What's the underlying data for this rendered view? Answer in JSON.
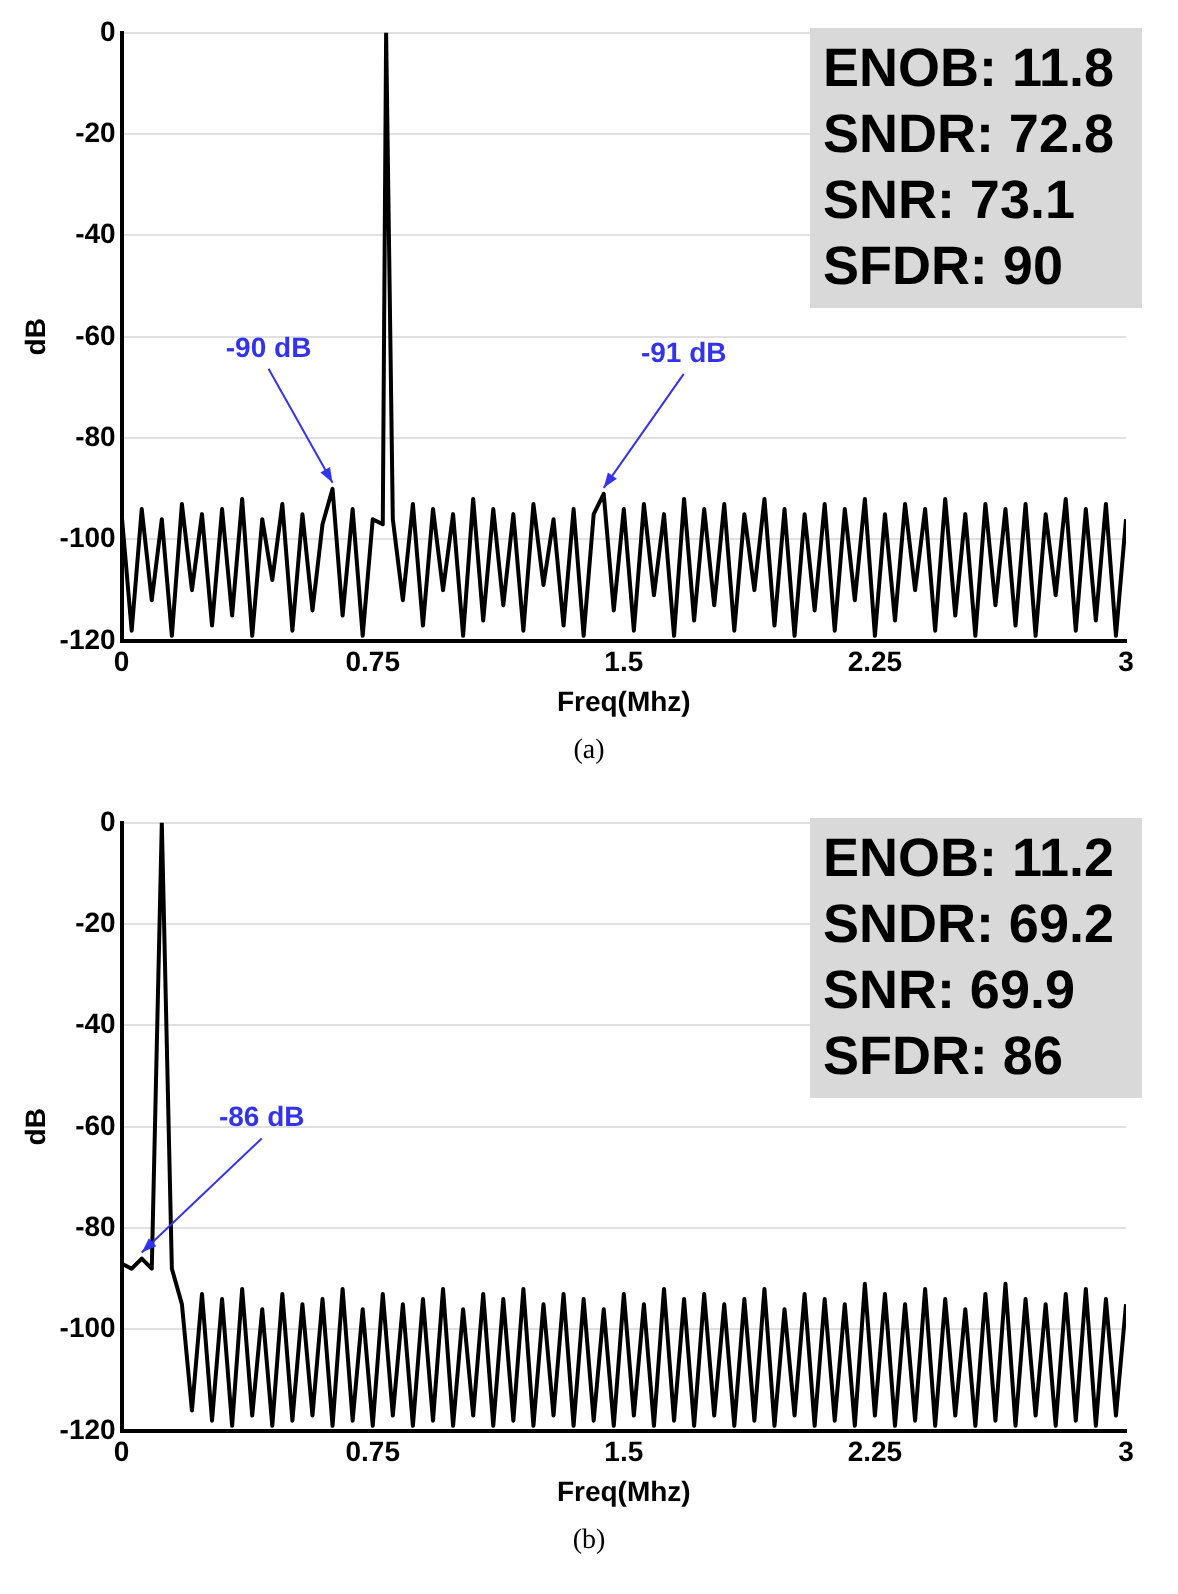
{
  "chart_data": [
    {
      "type": "line",
      "title": "(a)",
      "xlabel": "Freq(Mhz)",
      "ylabel": "dB",
      "xlim": [
        0,
        3
      ],
      "xticks": [
        0,
        0.75,
        1.5,
        2.25,
        3
      ],
      "ylim": [
        -120,
        0
      ],
      "yticks": [
        0,
        -20,
        -40,
        -60,
        -80,
        -100,
        -120
      ],
      "grid": "y",
      "legend": false,
      "marker": "none",
      "line_style": "solid",
      "annotations": [
        {
          "text": "-90 dB",
          "x": 0.63,
          "y": -90
        },
        {
          "text": "-91 dB",
          "x": 1.44,
          "y": -91
        },
        "ENOB: 11.8",
        "SNDR: 72.8",
        "SNR: 73.1",
        "SFDR: 90"
      ],
      "series": [
        {
          "color": "#000000",
          "x": [
            0,
            0.03,
            0.06,
            0.09,
            0.12,
            0.15,
            0.18,
            0.21,
            0.24,
            0.27,
            0.3,
            0.33,
            0.36,
            0.39,
            0.42,
            0.45,
            0.48,
            0.51,
            0.54,
            0.57,
            0.6,
            0.63,
            0.66,
            0.69,
            0.72,
            0.75,
            0.78,
            0.79,
            0.81,
            0.84,
            0.87,
            0.9,
            0.93,
            0.96,
            0.99,
            1.02,
            1.05,
            1.08,
            1.11,
            1.14,
            1.17,
            1.2,
            1.23,
            1.26,
            1.29,
            1.32,
            1.35,
            1.38,
            1.41,
            1.44,
            1.47,
            1.5,
            1.53,
            1.56,
            1.59,
            1.62,
            1.65,
            1.68,
            1.71,
            1.74,
            1.77,
            1.8,
            1.83,
            1.86,
            1.89,
            1.92,
            1.95,
            1.98,
            2.01,
            2.04,
            2.07,
            2.1,
            2.13,
            2.16,
            2.19,
            2.22,
            2.25,
            2.28,
            2.31,
            2.34,
            2.37,
            2.4,
            2.43,
            2.46,
            2.49,
            2.52,
            2.55,
            2.58,
            2.61,
            2.64,
            2.67,
            2.7,
            2.73,
            2.76,
            2.79,
            2.82,
            2.85,
            2.88,
            2.91,
            2.94,
            2.97,
            3
          ],
          "values": [
            -95,
            -118,
            -94,
            -112,
            -96,
            -119,
            -93,
            -110,
            -95,
            -117,
            -94,
            -115,
            -92,
            -119,
            -96,
            -108,
            -93,
            -118,
            -95,
            -114,
            -97,
            -90,
            -115,
            -94,
            -119,
            -96,
            -97,
            0,
            -96,
            -112,
            -93,
            -117,
            -94,
            -110,
            -95,
            -119,
            -92,
            -116,
            -94,
            -113,
            -95,
            -118,
            -93,
            -109,
            -96,
            -117,
            -94,
            -119,
            -95,
            -91,
            -114,
            -94,
            -118,
            -93,
            -111,
            -95,
            -119,
            -92,
            -116,
            -94,
            -113,
            -93,
            -118,
            -95,
            -110,
            -92,
            -117,
            -94,
            -119,
            -95,
            -114,
            -93,
            -118,
            -94,
            -112,
            -92,
            -119,
            -95,
            -116,
            -93,
            -110,
            -94,
            -118,
            -92,
            -115,
            -95,
            -119,
            -93,
            -113,
            -94,
            -117,
            -93,
            -119,
            -95,
            -111,
            -92,
            -118,
            -94,
            -116,
            -93,
            -119,
            -96
          ]
        }
      ]
    },
    {
      "type": "line",
      "title": "(b)",
      "xlabel": "Freq(Mhz)",
      "ylabel": "dB",
      "xlim": [
        0,
        3
      ],
      "xticks": [
        0,
        0.75,
        1.5,
        2.25,
        3
      ],
      "ylim": [
        -120,
        0
      ],
      "yticks": [
        0,
        -20,
        -40,
        -60,
        -80,
        -100,
        -120
      ],
      "grid": "y",
      "legend": false,
      "marker": "none",
      "line_style": "solid",
      "annotations": [
        {
          "text": "-86 dB",
          "x": 0.06,
          "y": -86
        },
        "ENOB: 11.2",
        "SNDR: 69.2",
        "SNR: 69.9",
        "SFDR: 86"
      ],
      "series": [
        {
          "color": "#000000",
          "x": [
            0,
            0.03,
            0.06,
            0.09,
            0.12,
            0.15,
            0.18,
            0.21,
            0.24,
            0.27,
            0.3,
            0.33,
            0.36,
            0.39,
            0.42,
            0.45,
            0.48,
            0.51,
            0.54,
            0.57,
            0.6,
            0.63,
            0.66,
            0.69,
            0.72,
            0.75,
            0.78,
            0.81,
            0.84,
            0.87,
            0.9,
            0.93,
            0.96,
            0.99,
            1.02,
            1.05,
            1.08,
            1.11,
            1.14,
            1.17,
            1.2,
            1.23,
            1.26,
            1.29,
            1.32,
            1.35,
            1.38,
            1.41,
            1.44,
            1.47,
            1.5,
            1.53,
            1.56,
            1.59,
            1.62,
            1.65,
            1.68,
            1.71,
            1.74,
            1.77,
            1.8,
            1.83,
            1.86,
            1.89,
            1.92,
            1.95,
            1.98,
            2.01,
            2.04,
            2.07,
            2.1,
            2.13,
            2.16,
            2.19,
            2.22,
            2.25,
            2.28,
            2.31,
            2.34,
            2.37,
            2.4,
            2.43,
            2.46,
            2.49,
            2.52,
            2.55,
            2.58,
            2.61,
            2.64,
            2.67,
            2.7,
            2.73,
            2.76,
            2.79,
            2.82,
            2.85,
            2.88,
            2.91,
            2.94,
            2.97,
            3
          ],
          "values": [
            -87,
            -88,
            -86,
            -88,
            0,
            -88,
            -95,
            -116,
            -93,
            -118,
            -94,
            -119,
            -92,
            -117,
            -96,
            -119,
            -93,
            -118,
            -95,
            -117,
            -94,
            -119,
            -92,
            -118,
            -96,
            -119,
            -93,
            -117,
            -95,
            -119,
            -94,
            -118,
            -92,
            -119,
            -96,
            -117,
            -93,
            -119,
            -94,
            -118,
            -92,
            -119,
            -95,
            -117,
            -93,
            -119,
            -94,
            -118,
            -96,
            -119,
            -93,
            -117,
            -95,
            -119,
            -92,
            -118,
            -94,
            -119,
            -93,
            -117,
            -95,
            -119,
            -94,
            -118,
            -92,
            -119,
            -96,
            -117,
            -93,
            -119,
            -94,
            -118,
            -95,
            -119,
            -91,
            -117,
            -93,
            -119,
            -95,
            -118,
            -92,
            -119,
            -94,
            -117,
            -96,
            -119,
            -93,
            -118,
            -91,
            -119,
            -94,
            -117,
            -95,
            -119,
            -93,
            -118,
            -92,
            -119,
            -94,
            -117,
            -95
          ]
        }
      ]
    }
  ]
}
